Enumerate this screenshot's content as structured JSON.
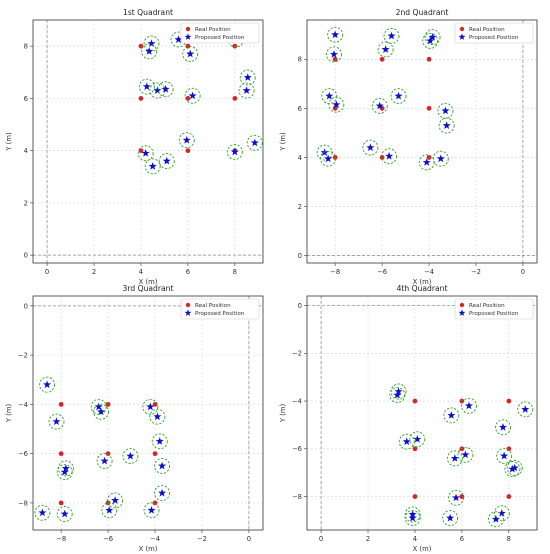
{
  "colors": {
    "real": "#d62728",
    "proposed": "#1010cc",
    "circle": "#2ca02c",
    "grid": "#d8d8d8",
    "zero_line": "#888888"
  },
  "chart_data": [
    {
      "type": "scatter",
      "title": "1st Quadrant",
      "xlabel": "X (m)",
      "ylabel": "Y (m)",
      "xlim": [
        -0.6,
        9.2
      ],
      "ylim": [
        -0.3,
        9.0
      ],
      "xticks": [
        0,
        2,
        4,
        6,
        8
      ],
      "yticks": [
        0,
        2,
        4,
        6,
        8
      ],
      "grid": true,
      "legend": "top-right",
      "series": [
        {
          "name": "Real Position",
          "marker": "circle",
          "points": [
            [
              4,
              8
            ],
            [
              6,
              8
            ],
            [
              8,
              8
            ],
            [
              4,
              6
            ],
            [
              6,
              6
            ],
            [
              8,
              6
            ],
            [
              4,
              4
            ],
            [
              6,
              4
            ],
            [
              8,
              4
            ]
          ]
        },
        {
          "name": "Proposed Position",
          "marker": "star",
          "points": [
            [
              4.45,
              8.1
            ],
            [
              4.35,
              7.8
            ],
            [
              5.6,
              8.25
            ],
            [
              6.1,
              7.7
            ],
            [
              8.05,
              8.25
            ],
            [
              4.25,
              6.45
            ],
            [
              4.7,
              6.3
            ],
            [
              5.05,
              6.35
            ],
            [
              6.2,
              6.1
            ],
            [
              8.55,
              6.8
            ],
            [
              8.5,
              6.3
            ],
            [
              4.2,
              3.9
            ],
            [
              4.5,
              3.4
            ],
            [
              5.1,
              3.6
            ],
            [
              5.95,
              4.4
            ],
            [
              8.0,
              3.95
            ],
            [
              8.85,
              4.3
            ]
          ]
        }
      ]
    },
    {
      "type": "scatter",
      "title": "2nd Quadrant",
      "xlabel": "X (m)",
      "ylabel": "Y (m)",
      "xlim": [
        -9.2,
        0.6
      ],
      "ylim": [
        -0.3,
        9.6
      ],
      "xticks": [
        -8,
        -6,
        -4,
        -2,
        0
      ],
      "yticks": [
        0,
        2,
        4,
        6,
        8
      ],
      "grid": true,
      "legend": "top-right",
      "series": [
        {
          "name": "Real Position",
          "marker": "circle",
          "points": [
            [
              -8,
              8
            ],
            [
              -6,
              8
            ],
            [
              -4,
              8
            ],
            [
              -8,
              6
            ],
            [
              -6,
              6
            ],
            [
              -4,
              6
            ],
            [
              -8,
              4
            ],
            [
              -6,
              4
            ],
            [
              -4,
              4
            ]
          ]
        },
        {
          "name": "Proposed Position",
          "marker": "star",
          "points": [
            [
              -8,
              9
            ],
            [
              -8.05,
              8.2
            ],
            [
              -5.85,
              8.4
            ],
            [
              -5.6,
              8.95
            ],
            [
              -3.85,
              8.9
            ],
            [
              -3.95,
              8.75
            ],
            [
              -8.25,
              6.5
            ],
            [
              -7.95,
              6.15
            ],
            [
              -6.1,
              6.1
            ],
            [
              -5.3,
              6.5
            ],
            [
              -3.3,
              5.9
            ],
            [
              -3.25,
              5.3
            ],
            [
              -8.45,
              4.2
            ],
            [
              -8.3,
              3.95
            ],
            [
              -6.5,
              4.4
            ],
            [
              -5.7,
              4.05
            ],
            [
              -4.1,
              3.8
            ],
            [
              -3.5,
              3.95
            ]
          ]
        }
      ]
    },
    {
      "type": "scatter",
      "title": "3rd Quadrant",
      "xlabel": "X (m)",
      "ylabel": "Y (m)",
      "xlim": [
        -9.2,
        0.6
      ],
      "ylim": [
        -9.1,
        0.4
      ],
      "xticks": [
        -8,
        -6,
        -4,
        -2,
        0
      ],
      "yticks": [
        0,
        -2,
        -4,
        -6,
        -8
      ],
      "grid": true,
      "legend": "top-right",
      "series": [
        {
          "name": "Real Position",
          "marker": "circle",
          "points": [
            [
              -8,
              -4
            ],
            [
              -6,
              -4
            ],
            [
              -4,
              -4
            ],
            [
              -8,
              -6
            ],
            [
              -6,
              -6
            ],
            [
              -4,
              -6
            ],
            [
              -8,
              -8
            ],
            [
              -6,
              -8
            ],
            [
              -4,
              -8
            ]
          ]
        },
        {
          "name": "Proposed Position",
          "marker": "star",
          "points": [
            [
              -8.6,
              -3.2
            ],
            [
              -8.2,
              -4.7
            ],
            [
              -6.4,
              -4.1
            ],
            [
              -6.3,
              -4.3
            ],
            [
              -4.2,
              -4.1
            ],
            [
              -3.9,
              -4.5
            ],
            [
              -7.8,
              -6.6
            ],
            [
              -7.85,
              -6.75
            ],
            [
              -6.15,
              -6.3
            ],
            [
              -5.05,
              -6.1
            ],
            [
              -3.8,
              -5.5
            ],
            [
              -3.7,
              -6.5
            ],
            [
              -8.8,
              -8.4
            ],
            [
              -7.85,
              -8.45
            ],
            [
              -5.95,
              -8.3
            ],
            [
              -5.7,
              -7.9
            ],
            [
              -4.15,
              -8.3
            ],
            [
              -3.7,
              -7.6
            ]
          ]
        }
      ]
    },
    {
      "type": "scatter",
      "title": "4th Quadrant",
      "xlabel": "X (m)",
      "ylabel": "Y (m)",
      "xlim": [
        -0.6,
        9.2
      ],
      "ylim": [
        -9.4,
        0.4
      ],
      "xticks": [
        0,
        2,
        4,
        6,
        8
      ],
      "yticks": [
        0,
        -2,
        -4,
        -6,
        -8
      ],
      "grid": true,
      "legend": "top-right",
      "series": [
        {
          "name": "Real Position",
          "marker": "circle",
          "points": [
            [
              4,
              -4
            ],
            [
              6,
              -4
            ],
            [
              8,
              -4
            ],
            [
              4,
              -6
            ],
            [
              6,
              -6
            ],
            [
              8,
              -6
            ],
            [
              4,
              -8
            ],
            [
              6,
              -8
            ],
            [
              8,
              -8
            ]
          ]
        },
        {
          "name": "Proposed Position",
          "marker": "star",
          "points": [
            [
              3.3,
              -3.6
            ],
            [
              3.25,
              -3.75
            ],
            [
              6.3,
              -4.2
            ],
            [
              5.55,
              -4.6
            ],
            [
              8.7,
              -4.35
            ],
            [
              7.75,
              -5.1
            ],
            [
              3.65,
              -5.7
            ],
            [
              4.1,
              -5.6
            ],
            [
              5.7,
              -6.4
            ],
            [
              6.15,
              -6.25
            ],
            [
              7.8,
              -6.3
            ],
            [
              8.25,
              -6.8
            ],
            [
              8.15,
              -6.85
            ],
            [
              3.9,
              -8.75
            ],
            [
              3.9,
              -8.9
            ],
            [
              5.75,
              -8.05
            ],
            [
              5.5,
              -8.9
            ],
            [
              7.7,
              -8.7
            ],
            [
              7.45,
              -8.95
            ]
          ]
        }
      ]
    }
  ]
}
